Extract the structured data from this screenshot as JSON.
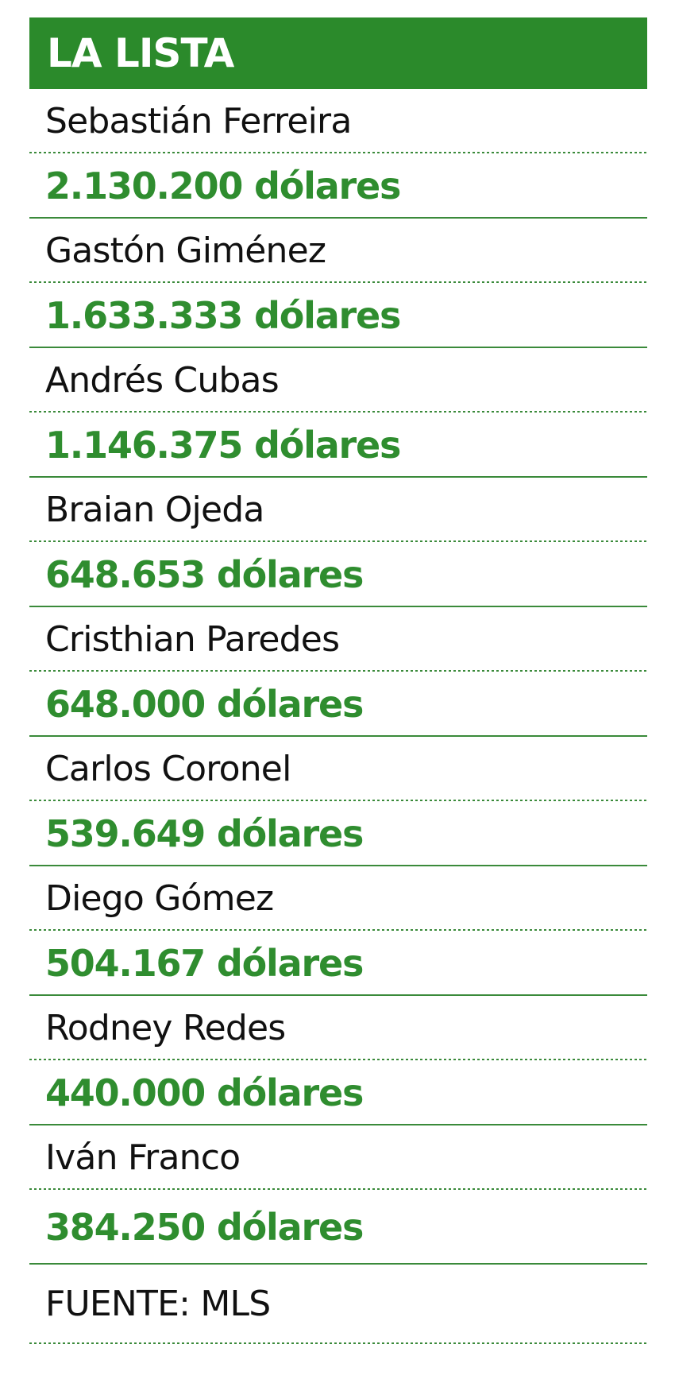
{
  "header": {
    "title": "LA LISTA"
  },
  "players": [
    {
      "name": "Sebastián Ferreira",
      "amount": "2.130.200 dólares"
    },
    {
      "name": "Gastón Giménez",
      "amount": "1.633.333 dólares"
    },
    {
      "name": "Andrés Cubas",
      "amount": "1.146.375 dólares"
    },
    {
      "name": "Braian Ojeda",
      "amount": "648.653 dólares"
    },
    {
      "name": "Cristhian Paredes",
      "amount": "648.000 dólares"
    },
    {
      "name": "Carlos Coronel",
      "amount": "539.649 dólares"
    },
    {
      "name": "Diego Gómez",
      "amount": "504.167 dólares"
    },
    {
      "name": "Rodney Redes",
      "amount": "440.000 dólares"
    },
    {
      "name": "Iván Franco",
      "amount": "384.250 dólares"
    }
  ],
  "source": "FUENTE: MLS",
  "colors": {
    "header_bg": "#2b8a2b",
    "amount_text": "#2f8d2f",
    "name_text": "#111111"
  }
}
